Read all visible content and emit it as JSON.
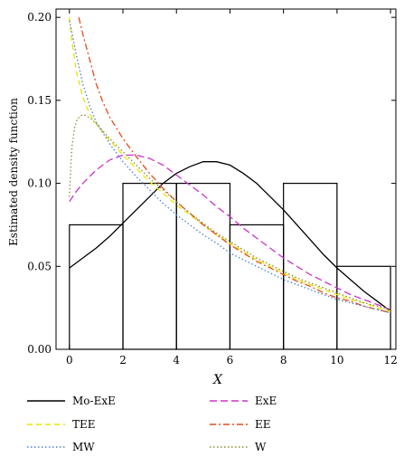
{
  "chart_data": {
    "type": "line",
    "xlabel": "X",
    "ylabel": "Estimated density function",
    "xlim": [
      -0.5,
      12.2
    ],
    "ylim": [
      0,
      0.205
    ],
    "xticks": [
      "0",
      "2",
      "4",
      "6",
      "8",
      "10",
      "12"
    ],
    "xtick_values": [
      0,
      2,
      4,
      6,
      8,
      10,
      12
    ],
    "yticks": [
      "0.00",
      "0.05",
      "0.10",
      "0.15",
      "0.20"
    ],
    "ytick_values": [
      0,
      0.05,
      0.1,
      0.15,
      0.2
    ],
    "histogram": {
      "bin_edges": [
        0,
        2,
        4,
        6,
        8,
        10,
        12
      ],
      "heights": [
        0.075,
        0.1,
        0.1,
        0.075,
        0.1,
        0.05
      ],
      "color": "#000000"
    },
    "series": [
      {
        "name": "Mo-ExE",
        "color": "#000000",
        "dash": "solid",
        "x": [
          0,
          0.5,
          1,
          1.5,
          2,
          2.5,
          3,
          3.5,
          4,
          4.5,
          5,
          5.5,
          6,
          6.5,
          7,
          7.5,
          8,
          8.5,
          9,
          9.5,
          10,
          10.5,
          11,
          11.5,
          12
        ],
        "y": [
          0.049,
          0.055,
          0.061,
          0.068,
          0.076,
          0.084,
          0.092,
          0.1,
          0.106,
          0.11,
          0.113,
          0.113,
          0.111,
          0.106,
          0.1,
          0.092,
          0.084,
          0.075,
          0.066,
          0.057,
          0.049,
          0.042,
          0.035,
          0.029,
          0.023
        ]
      },
      {
        "name": "ExE",
        "color": "#cc33cc",
        "dash": "long",
        "x": [
          0,
          0.25,
          0.5,
          1,
          1.5,
          2,
          2.5,
          3,
          3.5,
          4,
          4.5,
          5,
          5.5,
          6,
          6.5,
          7,
          7.5,
          8,
          8.5,
          9,
          9.5,
          10,
          10.5,
          11,
          11.5,
          12
        ],
        "y": [
          0.089,
          0.095,
          0.1,
          0.108,
          0.114,
          0.117,
          0.117,
          0.115,
          0.111,
          0.105,
          0.099,
          0.093,
          0.086,
          0.08,
          0.073,
          0.067,
          0.061,
          0.055,
          0.05,
          0.045,
          0.041,
          0.037,
          0.033,
          0.03,
          0.027,
          0.024
        ]
      },
      {
        "name": "TEE",
        "color": "#e6e600",
        "dash": "dash",
        "x": [
          0,
          0.1,
          0.25,
          0.5,
          0.75,
          1,
          1.5,
          2,
          2.5,
          3,
          3.5,
          4,
          4.5,
          5,
          5.5,
          6,
          6.5,
          7,
          7.5,
          8,
          8.5,
          9,
          9.5,
          10,
          10.5,
          11,
          11.5,
          12
        ],
        "y": [
          0.2,
          0.185,
          0.168,
          0.152,
          0.142,
          0.136,
          0.126,
          0.117,
          0.109,
          0.101,
          0.094,
          0.087,
          0.081,
          0.075,
          0.069,
          0.064,
          0.059,
          0.054,
          0.05,
          0.046,
          0.042,
          0.039,
          0.036,
          0.033,
          0.03,
          0.028,
          0.025,
          0.023
        ]
      },
      {
        "name": "EE",
        "color": "#e64a19",
        "dash": "dashdot",
        "x": [
          0.35,
          0.5,
          0.75,
          1,
          1.25,
          1.5,
          2,
          2.5,
          3,
          3.5,
          4,
          4.5,
          5,
          5.5,
          6,
          6.5,
          7,
          7.5,
          8,
          8.5,
          9,
          9.5,
          10,
          10.5,
          11,
          11.5,
          12
        ],
        "y": [
          0.2,
          0.19,
          0.175,
          0.16,
          0.149,
          0.14,
          0.127,
          0.116,
          0.106,
          0.097,
          0.089,
          0.082,
          0.075,
          0.069,
          0.063,
          0.058,
          0.053,
          0.049,
          0.045,
          0.041,
          0.038,
          0.034,
          0.031,
          0.029,
          0.026,
          0.024,
          0.022
        ]
      },
      {
        "name": "MW",
        "color": "#4a7fd4",
        "dash": "dot",
        "x": [
          0,
          0.1,
          0.25,
          0.5,
          0.75,
          1,
          1.5,
          2,
          2.5,
          3,
          3.5,
          4,
          4.5,
          5,
          5.5,
          6,
          6.5,
          7,
          7.5,
          8,
          8.5,
          9,
          9.5,
          10,
          10.5,
          11,
          11.5,
          12
        ],
        "y": [
          0.198,
          0.19,
          0.178,
          0.16,
          0.147,
          0.137,
          0.124,
          0.113,
          0.104,
          0.096,
          0.088,
          0.081,
          0.075,
          0.069,
          0.064,
          0.058,
          0.054,
          0.05,
          0.046,
          0.042,
          0.039,
          0.036,
          0.033,
          0.03,
          0.028,
          0.026,
          0.024,
          0.022
        ]
      },
      {
        "name": "W",
        "color": "#8a8a3a",
        "dash": "dot",
        "x": [
          0,
          0.05,
          0.1,
          0.2,
          0.3,
          0.45,
          0.6,
          0.8,
          1,
          1.5,
          2,
          2.5,
          3,
          3.5,
          4,
          4.5,
          5,
          5.5,
          6,
          6.5,
          7,
          7.5,
          8,
          8.5,
          9,
          9.5,
          10,
          10.5,
          11,
          11.5,
          12
        ],
        "y": [
          0.092,
          0.11,
          0.123,
          0.134,
          0.139,
          0.141,
          0.141,
          0.139,
          0.136,
          0.127,
          0.119,
          0.111,
          0.103,
          0.096,
          0.089,
          0.082,
          0.076,
          0.07,
          0.065,
          0.06,
          0.055,
          0.051,
          0.047,
          0.043,
          0.04,
          0.037,
          0.034,
          0.031,
          0.028,
          0.026,
          0.024
        ]
      }
    ],
    "legend": {
      "placement": "bottom",
      "entries": [
        {
          "name": "Mo-ExE",
          "color": "#000000",
          "dash": "solid"
        },
        {
          "name": "ExE",
          "color": "#cc33cc",
          "dash": "long"
        },
        {
          "name": "TEE",
          "color": "#e6e600",
          "dash": "dash"
        },
        {
          "name": "EE",
          "color": "#e64a19",
          "dash": "dashdot"
        },
        {
          "name": "MW",
          "color": "#4a7fd4",
          "dash": "dot"
        },
        {
          "name": "W",
          "color": "#8a8a3a",
          "dash": "dot"
        }
      ]
    },
    "grid": false
  }
}
